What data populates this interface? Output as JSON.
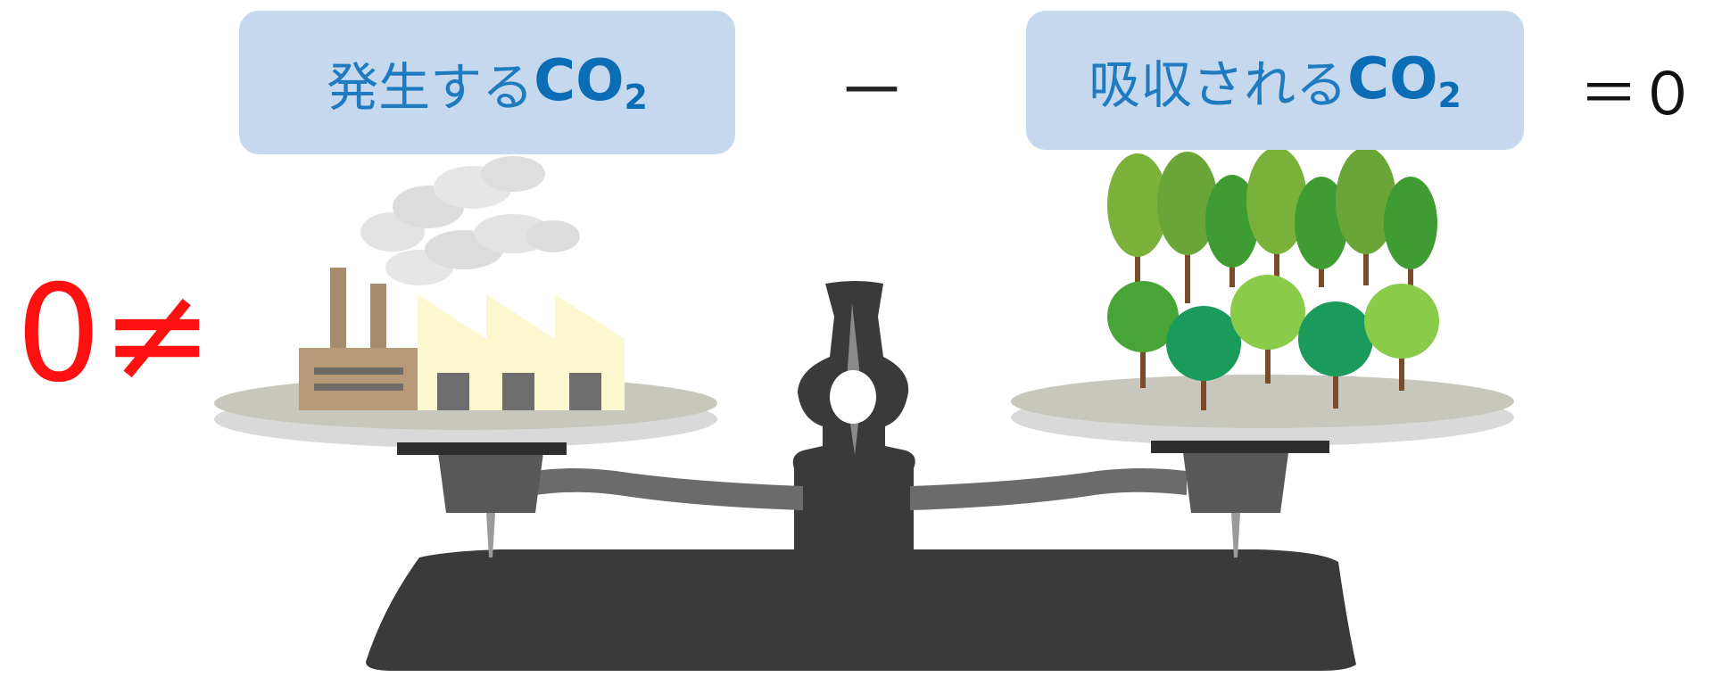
{
  "labels": {
    "generated_prefix": "発生する",
    "absorbed_prefix": "吸収される",
    "co2_main": "CO",
    "co2_sub": "2",
    "minus": "－",
    "equals_zero": "＝０",
    "not_equal_zero": "0≠"
  },
  "colors": {
    "label_background": "#c6d8ee",
    "label_text": "#1f7bbf",
    "accent_red": "#ff1010",
    "scale_dark": "#3a3a3a"
  }
}
